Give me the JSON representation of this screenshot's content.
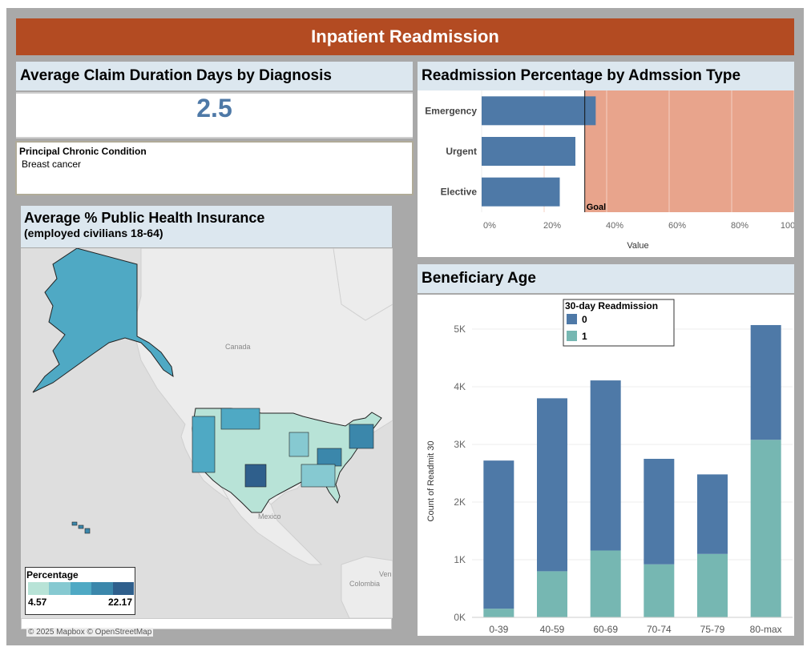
{
  "header": {
    "title": "Inpatient Readmission"
  },
  "claim_panel": {
    "title": "Average Claim Duration Days by Diagnosis",
    "value": "2.5",
    "condition_label": "Principal Chronic Condition",
    "condition_value": "Breast cancer"
  },
  "map_panel": {
    "title": "Average % Public Health Insurance",
    "subtitle": "(employed civilians 18-64)",
    "legend_title": "Percentage",
    "legend_min": "4.57",
    "legend_max": "22.17",
    "legend_colors": [
      "#b8e3d7",
      "#86c9d1",
      "#4fa9c4",
      "#3b87ab",
      "#2f5f8c"
    ],
    "labels": {
      "canada": "Canada",
      "mexico": "Mexico",
      "colombia": "Colombia",
      "ven": "Ven"
    },
    "attribution": "© 2025 Mapbox © OpenStreetMap"
  },
  "readmission_panel": {
    "title": "Readmission Percentage by Admssion Type",
    "goal_label": "Goal",
    "xlabel": "Value"
  },
  "age_panel": {
    "title": "Beneficiary Age",
    "legend_title": "30-day Readmission",
    "ylabel": "Count of Readmit 30"
  },
  "colors": {
    "blue": "#4e79a7",
    "teal": "#76b7b2",
    "goal": "#e8a48c",
    "banner": "#b34b22"
  },
  "chart_data": [
    {
      "type": "bar",
      "orientation": "horizontal",
      "title": "Readmission Percentage by Admssion Type",
      "categories": [
        "Emergency",
        "Urgent",
        "Elective"
      ],
      "values": [
        36.5,
        30,
        25
      ],
      "xlabel": "Value",
      "xlim": [
        0,
        100
      ],
      "xticks": [
        "0%",
        "20%",
        "40%",
        "60%",
        "80%",
        "100%"
      ],
      "goal": {
        "label": "Goal",
        "from": 33,
        "to": 100
      }
    },
    {
      "type": "bar",
      "stacked": true,
      "title": "Beneficiary Age",
      "categories": [
        "0-39",
        "40-59",
        "60-69",
        "70-74",
        "75-79",
        "80-max"
      ],
      "series": [
        {
          "name": "0",
          "values": [
            2570,
            3000,
            2950,
            1830,
            1380,
            1990
          ]
        },
        {
          "name": "1",
          "values": [
            150,
            800,
            1160,
            920,
            1100,
            3080
          ]
        }
      ],
      "ylabel": "Count of Readmit 30",
      "ylim": [
        0,
        5000
      ],
      "yticks": [
        "0K",
        "1K",
        "2K",
        "3K",
        "4K",
        "5K"
      ],
      "legend_title": "30-day Readmission",
      "legend": "top"
    }
  ]
}
